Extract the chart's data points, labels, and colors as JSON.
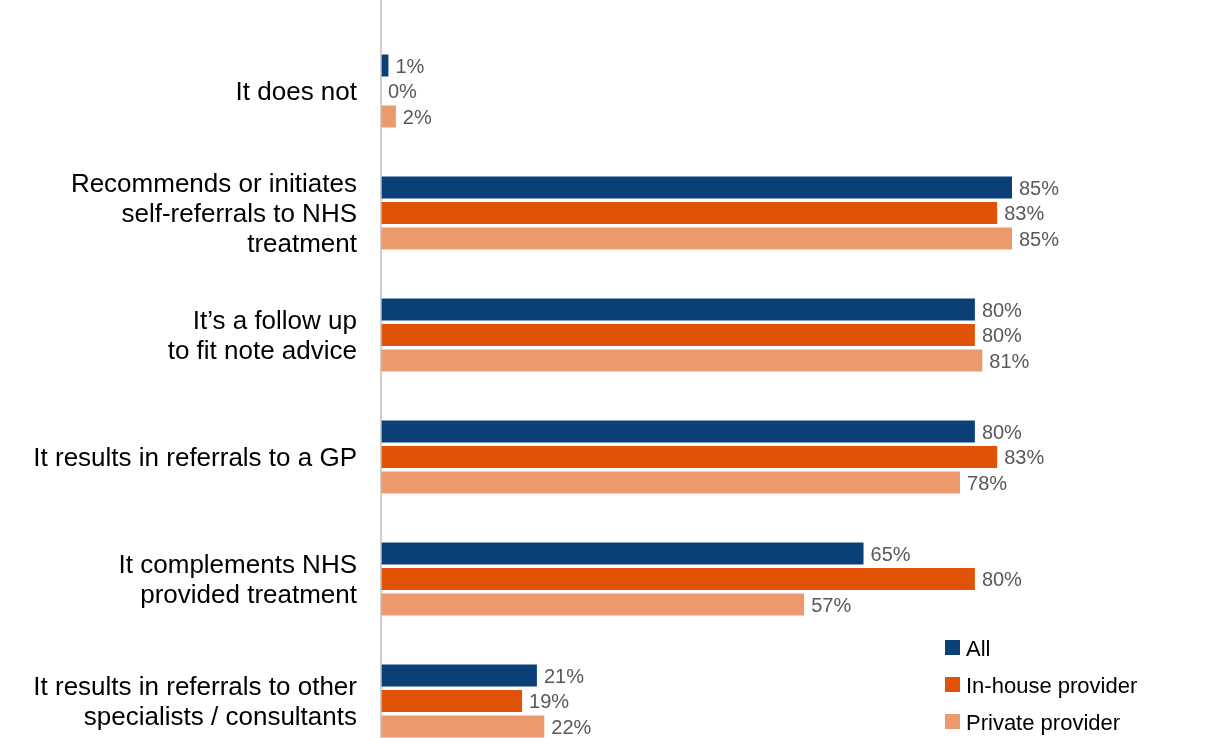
{
  "chart_data": {
    "type": "bar",
    "orientation": "horizontal",
    "categories": [
      "It does not",
      "Recommends or initiates self-referrals to NHS treatment",
      "It’s a follow up to fit note advice",
      "It results in referrals to a GP",
      "It complements NHS provided treatment",
      "It results in referrals to other specialists / consultants"
    ],
    "series": [
      {
        "name": "All",
        "color": "#0b3f78",
        "values": [
          1,
          85,
          80,
          80,
          65,
          21
        ],
        "value_labels": [
          "1%",
          "85%",
          "80%",
          "80%",
          "65%",
          "21%"
        ]
      },
      {
        "name": "In-house provider",
        "color": "#e05206",
        "values": [
          0,
          83,
          80,
          83,
          80,
          19
        ],
        "value_labels": [
          "0%",
          "83%",
          "80%",
          "83%",
          "80%",
          "19%"
        ]
      },
      {
        "name": "Private provider",
        "color": "#ec9a6d",
        "values": [
          2,
          85,
          81,
          78,
          57,
          22
        ],
        "value_labels": [
          "2%",
          "85%",
          "81%",
          "78%",
          "57%",
          "22%"
        ]
      }
    ],
    "legend": "bottom right"
  }
}
